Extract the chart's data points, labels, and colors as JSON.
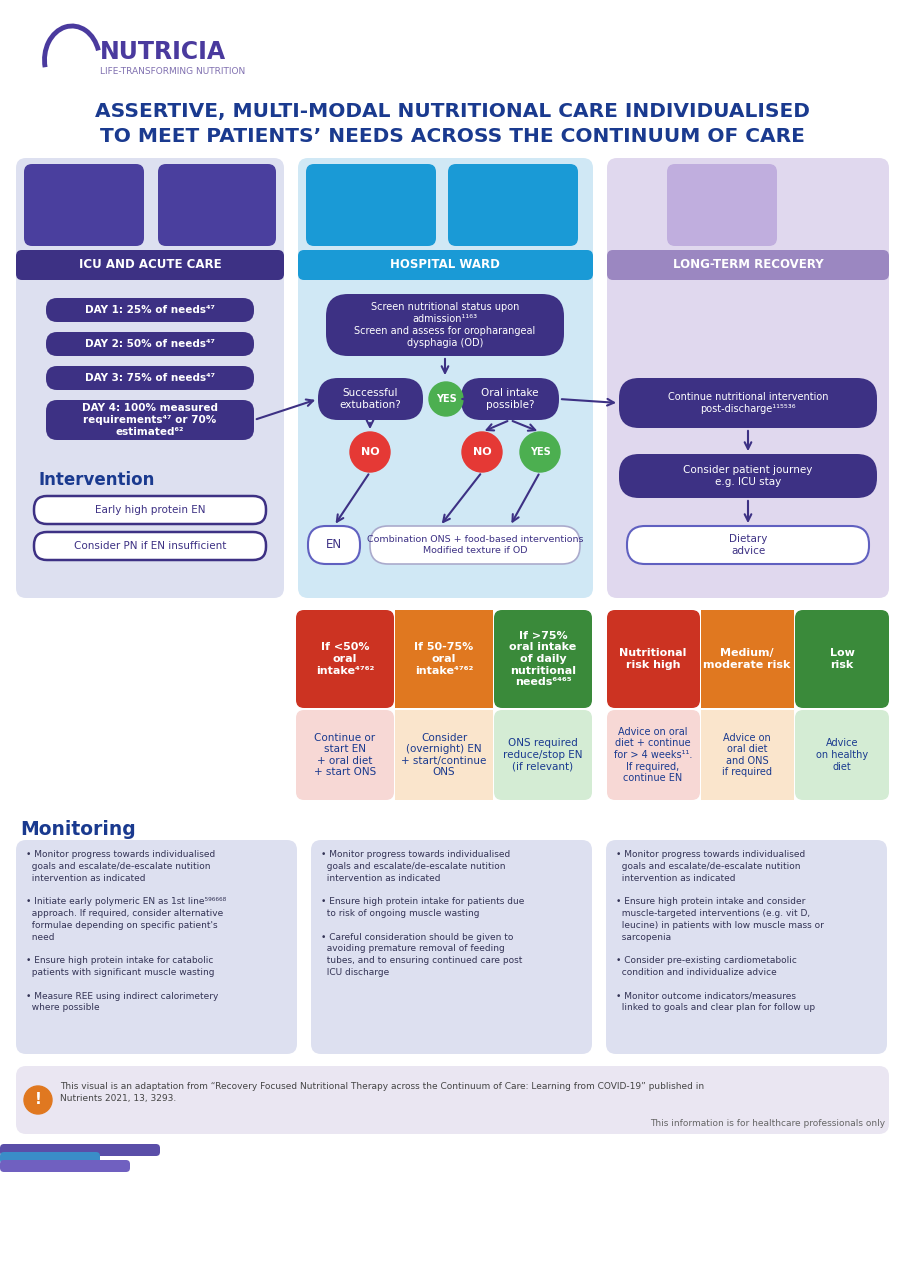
{
  "title_line1": "ASSERTIVE, MULTI-MODAL NUTRITIONAL CARE INDIVIDUALISED",
  "title_line2": "TO MEET PATIENTS’ NEEDS ACROSS THE CONTINUUM OF CARE",
  "title_color": "#1a3a8f",
  "bg_color": "#ffffff",
  "col1_header": "ICU AND ACUTE CARE",
  "col2_header": "HOSPITAL WARD",
  "col3_header": "LONG-TERM RECOVERY",
  "header_bg1": "#3d3184",
  "header_bg2": "#1a9ad6",
  "header_bg3": "#9b87c1",
  "panel_bg1": "#dde0f0",
  "panel_bg2": "#d0e8f5",
  "panel_bg3": "#e0d8ee",
  "icon_bg1": "#4a3f9e",
  "icon_bg2": "#1a9ad6",
  "icon_bg3": "#c0aede",
  "day_boxes": [
    "DAY 1: 25% of needs⁴⁷",
    "DAY 2: 50% of needs⁴⁷",
    "DAY 3: 75% of needs⁴⁷",
    "DAY 4: 100% measured\nrequirements⁴⁷ or 70%\nestimated⁶²"
  ],
  "day_box_color": "#3d3184",
  "intervention_label": "Intervention",
  "intervention_box1": "Early high protein EN",
  "intervention_box2": "Consider PN if EN insufficient",
  "screen_text": "Screen nutritional status upon\nadmission¹¹⁶³\nScreen and assess for oropharangeal\ndysphagia (OD)",
  "extubation_text": "Successful\nextubation?",
  "oral_text": "Oral intake\npossible?",
  "yes_color": "#4caf50",
  "no_color": "#e53935",
  "decision_box_color": "#3d3184",
  "continue_text": "Continue nutritional intervention\npost-discharge¹¹⁵⁵³⁶",
  "journey_text": "Consider patient journey\ne.g. ICU stay",
  "en_text": "EN",
  "combination_text": "Combination ONS + food-based interventions\nModified texture if OD",
  "dietary_text": "Dietary\nadvice",
  "hcol1_header": "If <50%\noral\nintake⁴⁷⁶²",
  "hcol2_header": "If 50-75%\noral\nintake⁴⁷⁶²",
  "hcol3_header": "If >75%\noral intake\nof daily\nnutritional\nneeds⁶⁴⁶⁵",
  "hcol1_body": "Continue or\nstart EN\n+ oral diet\n+ start ONS",
  "hcol2_body": "Consider\n(overnight) EN\n+ start/continue\nONS",
  "hcol3_body": "ONS required\nreduce/stop EN\n(if relevant)",
  "hcol1_bg": "#cc3322",
  "hcol2_bg": "#e07820",
  "hcol3_bg": "#3a8a3a",
  "hcol1_body_bg": "#f7d8d5",
  "hcol2_body_bg": "#fae5cc",
  "hcol3_body_bg": "#d4ecd4",
  "lcol1_header": "Nutritional\nrisk high",
  "lcol2_header": "Medium/\nmoderate risk",
  "lcol3_header": "Low\nrisk",
  "lcol1_body": "Advice on oral\ndiet + continue\nfor > 4 weeks¹¹.\nIf required,\ncontinue EN",
  "lcol2_body": "Advice on\noral diet\nand ONS\nif required",
  "lcol3_body": "Advice\non healthy\ndiet",
  "lcol1_bg": "#cc3322",
  "lcol2_bg": "#e07820",
  "lcol3_bg": "#3a8a3a",
  "lcol1_body_bg": "#f7d8d5",
  "lcol2_body_bg": "#fae5cc",
  "lcol3_body_bg": "#d4ecd4",
  "monitoring_title": "Monitoring",
  "monitoring_col1": "• Monitor progress towards individualised\n  goals and escalate/de-escalate nutition\n  intervention as indicated\n\n• Initiate early polymeric EN as 1st line⁵⁹⁶⁶⁶⁸\n  approach. If required, consider alternative\n  formulae depending on specific patient's\n  need\n\n• Ensure high protein intake for catabolic\n  patients with significant muscle wasting\n\n• Measure REE using indirect calorimetery\n  where possible",
  "monitoring_col2": "• Monitor progress towards individualised\n  goals and escalate/de-escalate nutition\n  intervention as indicated\n\n• Ensure high protein intake for patients due\n  to risk of ongoing muscle wasting\n\n• Careful consideration should be given to\n  avoiding premature removal of feeding\n  tubes, and to ensuring continued care post\n  ICU discharge",
  "monitoring_col3": "• Monitor progress towards individualised\n  goals and escalate/de-escalate nutition\n  intervention as indicated\n\n• Ensure high protein intake and consider\n  muscle-targeted interventions (e.g. vit D,\n  leucine) in patients with low muscle mass or\n  sarcopenia\n\n• Consider pre-existing cardiometabolic\n  condition and individualize advice\n\n• Monitor outcome indicators/measures\n  linked to goals and clear plan for follow up",
  "monitoring_bg": "#dde0f0",
  "footer_text": "This visual is an adaptation from “Recovery Focused Nutritional Therapy across the Continuum of Care: Learning from COVID-19” published in\nNutrients 2021, 13, 3293.",
  "footer_note": "This information is for healthcare professionals only",
  "footer_bg": "#eae6f2",
  "arrow_color": "#3d3184"
}
